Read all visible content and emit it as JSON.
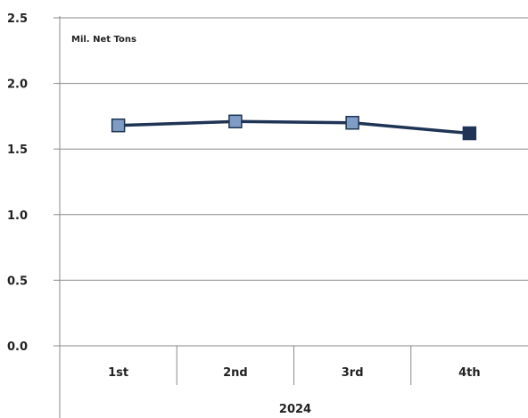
{
  "chart_data": {
    "type": "line",
    "unit_label": "Mil. Net Tons",
    "group_label": "2024",
    "categories": [
      "1st",
      "2nd",
      "3rd",
      "4th"
    ],
    "series": [
      {
        "values": [
          1.68,
          1.71,
          1.7,
          1.62
        ],
        "color": "#1f3455",
        "marker_color": "#7f9dc4"
      }
    ],
    "ylim": [
      0,
      2.5
    ],
    "yticks": [
      "0.0",
      "0.5",
      "1.0",
      "1.5",
      "2.0",
      "2.5"
    ],
    "grid": true
  }
}
